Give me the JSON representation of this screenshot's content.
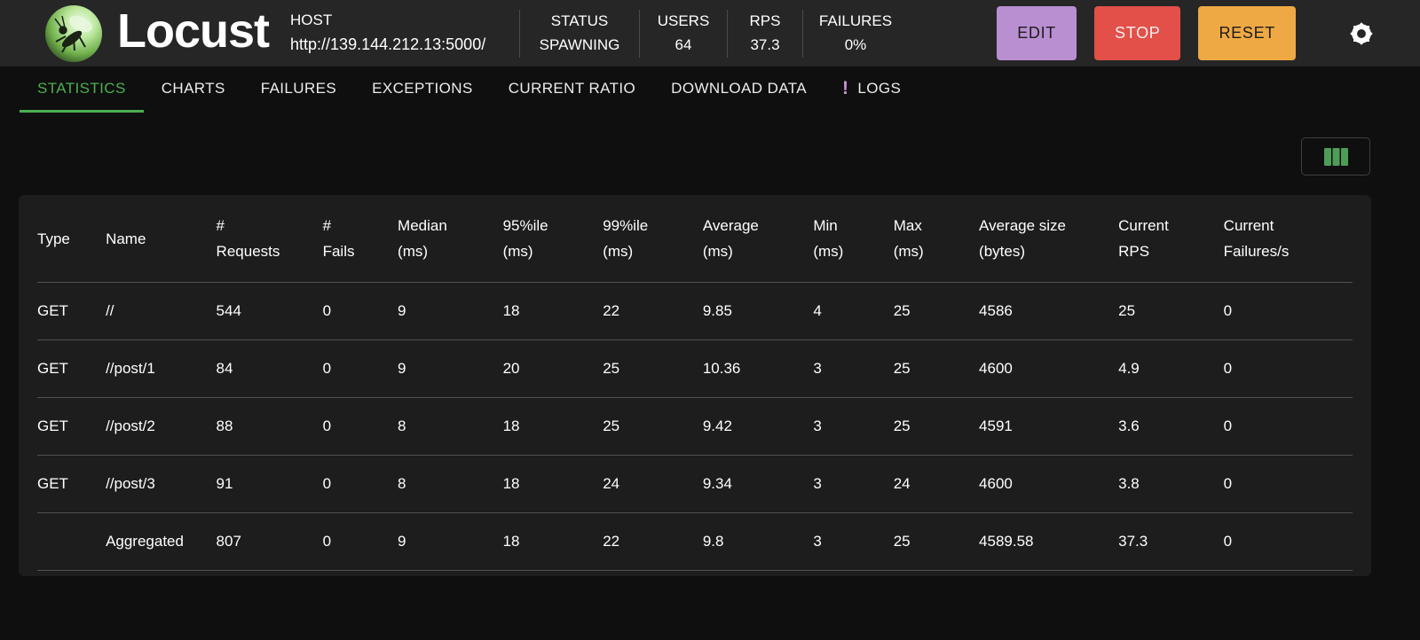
{
  "header": {
    "brand": "Locust",
    "host": {
      "label": "HOST",
      "value": "http://139.144.212.13:5000/"
    },
    "status": {
      "label": "STATUS",
      "value": "SPAWNING"
    },
    "users": {
      "label": "USERS",
      "value": "64"
    },
    "rps": {
      "label": "RPS",
      "value": "37.3"
    },
    "failures": {
      "label": "FAILURES",
      "value": "0%"
    },
    "buttons": {
      "edit": "EDIT",
      "stop": "STOP",
      "reset": "RESET"
    }
  },
  "tabs": [
    {
      "label": "STATISTICS",
      "active": true
    },
    {
      "label": "CHARTS"
    },
    {
      "label": "FAILURES"
    },
    {
      "label": "EXCEPTIONS"
    },
    {
      "label": "CURRENT RATIO"
    },
    {
      "label": "DOWNLOAD DATA"
    },
    {
      "label": "LOGS",
      "badge": "!"
    }
  ],
  "colors": {
    "accent_green": "#4caf50",
    "edit_button_bg": "#b98fd2",
    "stop_button_bg": "#e25049",
    "reset_button_bg": "#efa944",
    "logs_badge": "#ce93d8",
    "columns_icon_green": "#4e9d57"
  },
  "table": {
    "columns": [
      {
        "key": "type",
        "line1": "Type",
        "line2": ""
      },
      {
        "key": "name",
        "line1": "Name",
        "line2": ""
      },
      {
        "key": "requests",
        "line1": "#",
        "line2": "Requests"
      },
      {
        "key": "fails",
        "line1": "#",
        "line2": "Fails"
      },
      {
        "key": "median",
        "line1": "Median",
        "line2": "(ms)"
      },
      {
        "key": "p95",
        "line1": "95%ile",
        "line2": "(ms)"
      },
      {
        "key": "p99",
        "line1": "99%ile",
        "line2": "(ms)"
      },
      {
        "key": "average",
        "line1": "Average",
        "line2": "(ms)"
      },
      {
        "key": "min",
        "line1": "Min",
        "line2": "(ms)"
      },
      {
        "key": "max",
        "line1": "Max",
        "line2": "(ms)"
      },
      {
        "key": "average-size",
        "line1": "Average size",
        "line2": "(bytes)"
      },
      {
        "key": "current-rps",
        "line1": "Current",
        "line2": "RPS"
      },
      {
        "key": "current-failures",
        "line1": "Current",
        "line2": "Failures/s"
      }
    ],
    "rows": [
      [
        "GET",
        "//",
        "544",
        "0",
        "9",
        "18",
        "22",
        "9.85",
        "4",
        "25",
        "4586",
        "25",
        "0"
      ],
      [
        "GET",
        "//post/1",
        "84",
        "0",
        "9",
        "20",
        "25",
        "10.36",
        "3",
        "25",
        "4600",
        "4.9",
        "0"
      ],
      [
        "GET",
        "//post/2",
        "88",
        "0",
        "8",
        "18",
        "25",
        "9.42",
        "3",
        "25",
        "4591",
        "3.6",
        "0"
      ],
      [
        "GET",
        "//post/3",
        "91",
        "0",
        "8",
        "18",
        "24",
        "9.34",
        "3",
        "24",
        "4600",
        "3.8",
        "0"
      ],
      [
        "",
        "Aggregated",
        "807",
        "0",
        "9",
        "18",
        "22",
        "9.8",
        "3",
        "25",
        "4589.58",
        "37.3",
        "0"
      ]
    ]
  }
}
